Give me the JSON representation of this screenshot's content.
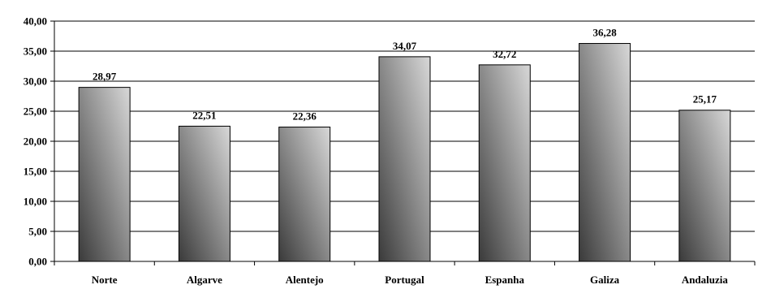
{
  "chart_data": {
    "type": "bar",
    "categories": [
      "Norte",
      "Algarve",
      "Alentejo",
      "Portugal",
      "Espanha",
      "Galiza",
      "Andaluzia"
    ],
    "values": [
      28.97,
      22.51,
      22.36,
      34.07,
      32.72,
      36.28,
      25.17
    ],
    "value_labels": [
      "28,97",
      "22,51",
      "22,36",
      "34,07",
      "32,72",
      "36,28",
      "25,17"
    ],
    "ylim": [
      0,
      40
    ],
    "yticks": [
      0,
      5,
      10,
      15,
      20,
      25,
      30,
      35,
      40
    ],
    "ytick_labels": [
      "0,00",
      "5,00",
      "10,00",
      "15,00",
      "20,00",
      "25,00",
      "30,00",
      "35,00",
      "40,00"
    ],
    "grid": true,
    "legend": "none",
    "bar_gradient": [
      "#3a3a3a",
      "#d8d8d8"
    ]
  }
}
